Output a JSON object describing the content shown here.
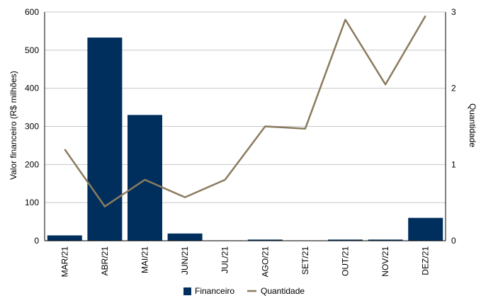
{
  "chart_data": {
    "type": "bar",
    "categories": [
      "MAR/21",
      "ABR/21",
      "MAI/21",
      "JUN/21",
      "JUL/21",
      "AGO/21",
      "SET/21",
      "OUT/21",
      "NOV/21",
      "DEZ/21"
    ],
    "series": [
      {
        "name": "Financeiro",
        "type": "bar",
        "axis": "left",
        "color": "#012f5d",
        "values": [
          14,
          533,
          330,
          19,
          1,
          3,
          1,
          3,
          3,
          60
        ]
      },
      {
        "name": "Quantidade",
        "type": "line",
        "axis": "right",
        "color": "#8b7b5e",
        "values": [
          1.2,
          0.45,
          0.8,
          0.57,
          0.8,
          1.5,
          1.47,
          2.9,
          2.05,
          2.95
        ]
      }
    ],
    "ylabel": "Valor financeiro (R$ milhões)",
    "y2label": "Quantidade",
    "ylim": [
      0,
      600
    ],
    "y2lim": [
      0,
      3
    ],
    "yticks": [
      "0",
      "100",
      "200",
      "300",
      "400",
      "500",
      "600"
    ],
    "y2ticks": [
      "0",
      "1",
      "2",
      "3"
    ],
    "grid": true,
    "legend_position": "bottom"
  }
}
